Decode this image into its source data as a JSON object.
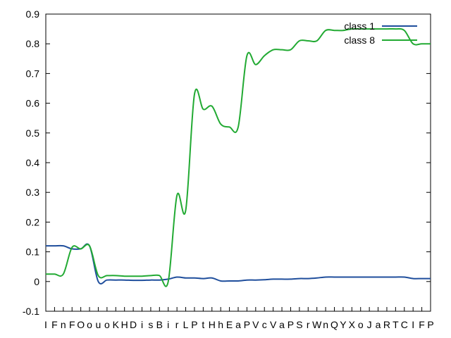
{
  "chart_data": {
    "type": "line",
    "title": "",
    "xlabel": "",
    "ylabel": "",
    "ylim": [
      -0.1,
      0.9
    ],
    "yticks": [
      "-0.1",
      "0",
      "0.1",
      "0.2",
      "0.3",
      "0.4",
      "0.5",
      "0.6",
      "0.7",
      "0.8",
      "0.9"
    ],
    "categories": [
      "I",
      "F",
      "n",
      "F",
      "O",
      "o",
      "u",
      "o",
      "K",
      "H",
      "D",
      "i",
      "s",
      "B",
      "i",
      "r",
      "L",
      "P",
      "t",
      "H",
      "h",
      "E",
      "a",
      "P",
      "V",
      "c",
      "V",
      "a",
      "P",
      "S",
      "r",
      "W",
      "n",
      "Q",
      "Y",
      "X",
      "o",
      "J",
      "a",
      "R",
      "T",
      "C",
      "I",
      "F",
      "P"
    ],
    "legend_position": "top-right",
    "grid": false,
    "series": [
      {
        "name": "class 1",
        "color": "#1f4e9c",
        "values": [
          0.12,
          0.12,
          0.12,
          0.11,
          0.11,
          0.12,
          0.0,
          0.005,
          0.005,
          0.005,
          0.004,
          0.004,
          0.005,
          0.005,
          0.008,
          0.015,
          0.012,
          0.012,
          0.01,
          0.012,
          0.002,
          0.002,
          0.002,
          0.005,
          0.005,
          0.006,
          0.008,
          0.008,
          0.008,
          0.01,
          0.01,
          0.012,
          0.015,
          0.015,
          0.015,
          0.015,
          0.015,
          0.015,
          0.015,
          0.015,
          0.015,
          0.015,
          0.01,
          0.01,
          0.01
        ]
      },
      {
        "name": "class 8",
        "color": "#22aa33",
        "values": [
          0.025,
          0.025,
          0.025,
          0.115,
          0.11,
          0.12,
          0.02,
          0.02,
          0.02,
          0.018,
          0.018,
          0.018,
          0.02,
          0.02,
          0.0,
          0.29,
          0.24,
          0.63,
          0.58,
          0.59,
          0.53,
          0.52,
          0.52,
          0.76,
          0.73,
          0.76,
          0.78,
          0.78,
          0.78,
          0.81,
          0.81,
          0.81,
          0.845,
          0.845,
          0.845,
          0.85,
          0.85,
          0.85,
          0.85,
          0.85,
          0.85,
          0.845,
          0.8,
          0.8,
          0.8
        ]
      }
    ]
  }
}
